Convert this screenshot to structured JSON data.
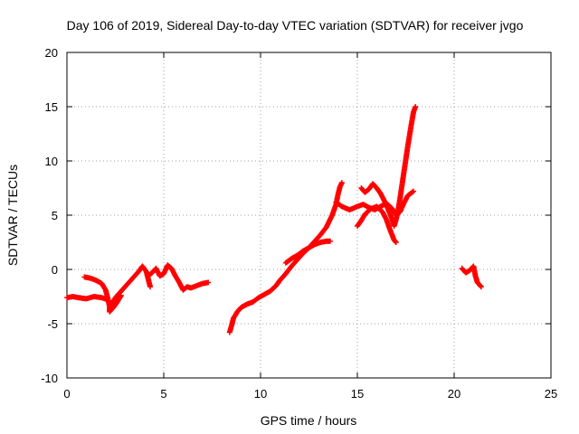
{
  "chart_data": {
    "type": "scatter",
    "title": "Day 106 of 2019, Sidereal Day-to-day VTEC variation (SDTVAR) for receiver jvgo",
    "xlabel": "GPS time / hours",
    "ylabel": "SDTVAR / TECUs",
    "xlim": [
      0,
      25
    ],
    "ylim": [
      -10,
      20
    ],
    "xticks": [
      0,
      5,
      10,
      15,
      20,
      25
    ],
    "yticks": [
      -10,
      -5,
      0,
      5,
      10,
      15,
      20
    ],
    "xtick_labels": [
      "0",
      "5",
      "10",
      "15",
      "20",
      "25"
    ],
    "ytick_labels": [
      "-10",
      "-5",
      "0",
      "5",
      "10",
      "15",
      "20"
    ],
    "grid": true,
    "marker": "plus",
    "color": "#ff0000",
    "series": [
      {
        "values": [
          [
            0.0,
            -2.6
          ],
          [
            0.3,
            -2.5
          ],
          [
            0.6,
            -2.6
          ],
          [
            1.0,
            -2.7
          ],
          [
            1.4,
            -2.5
          ],
          [
            1.8,
            -2.6
          ],
          [
            2.1,
            -2.8
          ],
          [
            2.3,
            -3.2
          ],
          [
            2.5,
            -2.6
          ],
          [
            2.8,
            -2.0
          ],
          [
            3.1,
            -1.4
          ],
          [
            3.4,
            -0.8
          ],
          [
            3.7,
            -0.2
          ],
          [
            3.9,
            0.3
          ],
          [
            4.1,
            -0.2
          ],
          [
            4.2,
            -0.9
          ],
          [
            4.3,
            -1.6
          ]
        ]
      },
      {
        "values": [
          [
            0.9,
            -0.7
          ],
          [
            1.2,
            -0.8
          ],
          [
            1.5,
            -1.0
          ],
          [
            1.8,
            -1.3
          ],
          [
            2.0,
            -1.9
          ],
          [
            2.1,
            -2.6
          ],
          [
            2.2,
            -3.4
          ],
          [
            2.2,
            -3.9
          ],
          [
            2.4,
            -3.5
          ],
          [
            2.6,
            -3.0
          ],
          [
            2.8,
            -2.4
          ]
        ]
      },
      {
        "values": [
          [
            4.2,
            -0.6
          ],
          [
            4.4,
            -0.3
          ],
          [
            4.6,
            0.1
          ],
          [
            4.8,
            -0.6
          ],
          [
            5.0,
            -0.4
          ],
          [
            5.2,
            0.4
          ],
          [
            5.4,
            0.1
          ],
          [
            5.6,
            -0.6
          ],
          [
            5.8,
            -1.2
          ],
          [
            6.0,
            -1.9
          ],
          [
            6.2,
            -1.6
          ],
          [
            6.4,
            -1.7
          ],
          [
            6.7,
            -1.5
          ],
          [
            7.0,
            -1.3
          ],
          [
            7.3,
            -1.2
          ]
        ]
      },
      {
        "values": [
          [
            8.4,
            -5.8
          ],
          [
            8.5,
            -5.2
          ],
          [
            8.6,
            -4.5
          ],
          [
            8.8,
            -3.9
          ],
          [
            9.0,
            -3.5
          ],
          [
            9.3,
            -3.2
          ],
          [
            9.6,
            -3.0
          ],
          [
            9.9,
            -2.6
          ],
          [
            10.2,
            -2.3
          ],
          [
            10.5,
            -2.0
          ],
          [
            10.8,
            -1.5
          ],
          [
            11.0,
            -1.0
          ],
          [
            11.3,
            -0.4
          ],
          [
            11.6,
            0.3
          ],
          [
            11.9,
            0.9
          ],
          [
            12.2,
            1.5
          ],
          [
            12.5,
            2.0
          ],
          [
            12.8,
            2.6
          ],
          [
            13.1,
            3.2
          ],
          [
            13.4,
            3.9
          ],
          [
            13.7,
            5.0
          ],
          [
            13.9,
            6.0
          ],
          [
            14.0,
            6.9
          ],
          [
            14.1,
            7.6
          ],
          [
            14.2,
            8.0
          ]
        ]
      },
      {
        "values": [
          [
            11.3,
            0.6
          ],
          [
            11.6,
            1.0
          ],
          [
            11.9,
            1.3
          ],
          [
            12.2,
            1.7
          ],
          [
            12.5,
            2.0
          ],
          [
            12.8,
            2.3
          ],
          [
            13.1,
            2.5
          ],
          [
            13.4,
            2.6
          ],
          [
            13.6,
            2.6
          ]
        ]
      },
      {
        "values": [
          [
            13.9,
            6.2
          ],
          [
            14.2,
            5.8
          ],
          [
            14.6,
            5.5
          ],
          [
            15.0,
            5.8
          ],
          [
            15.3,
            6.0
          ],
          [
            15.6,
            5.7
          ],
          [
            15.9,
            5.5
          ],
          [
            16.2,
            5.8
          ],
          [
            16.5,
            6.1
          ],
          [
            16.8,
            5.6
          ],
          [
            17.0,
            5.0
          ],
          [
            17.2,
            5.3
          ],
          [
            17.4,
            6.1
          ],
          [
            17.6,
            6.8
          ],
          [
            17.9,
            7.2
          ]
        ]
      },
      {
        "values": [
          [
            15.2,
            7.5
          ],
          [
            15.4,
            7.1
          ],
          [
            15.6,
            7.4
          ],
          [
            15.8,
            7.9
          ],
          [
            16.0,
            7.5
          ],
          [
            16.2,
            7.0
          ],
          [
            16.4,
            6.3
          ],
          [
            16.6,
            5.5
          ],
          [
            16.8,
            4.6
          ],
          [
            16.9,
            4.0
          ],
          [
            17.0,
            4.6
          ],
          [
            17.1,
            5.4
          ],
          [
            17.2,
            6.5
          ],
          [
            17.3,
            7.7
          ],
          [
            17.4,
            8.9
          ],
          [
            17.5,
            10.1
          ],
          [
            17.6,
            11.3
          ],
          [
            17.7,
            12.4
          ],
          [
            17.8,
            13.5
          ],
          [
            17.9,
            14.5
          ],
          [
            18.0,
            15.0
          ]
        ]
      },
      {
        "values": [
          [
            15.0,
            4.0
          ],
          [
            15.2,
            4.5
          ],
          [
            15.4,
            5.1
          ],
          [
            15.7,
            5.6
          ],
          [
            16.0,
            5.8
          ],
          [
            16.3,
            5.3
          ],
          [
            16.5,
            4.6
          ],
          [
            16.7,
            3.6
          ],
          [
            16.9,
            2.7
          ],
          [
            17.0,
            2.5
          ]
        ]
      },
      {
        "values": [
          [
            20.4,
            0.1
          ],
          [
            20.6,
            -0.3
          ],
          [
            20.8,
            -0.1
          ],
          [
            21.0,
            0.3
          ],
          [
            21.1,
            -0.6
          ],
          [
            21.2,
            -1.2
          ],
          [
            21.4,
            -1.6
          ]
        ]
      }
    ]
  }
}
